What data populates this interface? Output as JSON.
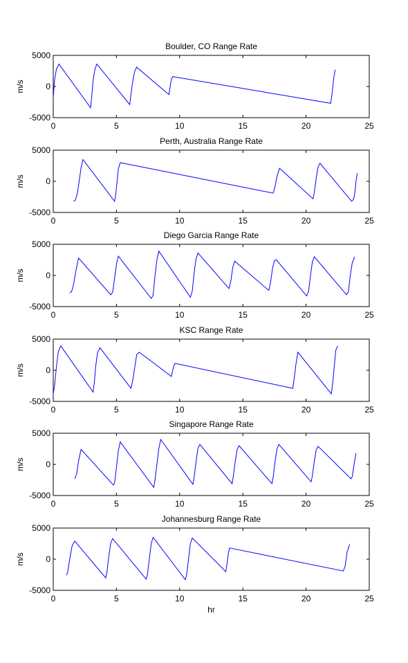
{
  "chart_data": [
    {
      "type": "line",
      "title": "Boulder, CO Range Rate",
      "ylabel": "m/s",
      "xlabel": "",
      "xlim": [
        0,
        25
      ],
      "ylim": [
        -5000,
        5000
      ],
      "xticks": [
        "0",
        "5",
        "10",
        "15",
        "20",
        "25"
      ],
      "yticks": [
        "-5000",
        "0",
        "5000"
      ],
      "grid": false,
      "series": [
        {
          "color": "#0000ff",
          "x": [
            0.0,
            0.1,
            0.25,
            0.45,
            2.95,
            3.05,
            3.15,
            3.3,
            3.45,
            6.05,
            6.15,
            6.3,
            6.45,
            6.6,
            9.15,
            9.25,
            9.35,
            9.45,
            21.95,
            22.05,
            22.2,
            22.3
          ],
          "y": [
            -1800,
            1000,
            2800,
            3600,
            -3400,
            -1500,
            900,
            2800,
            3600,
            -2900,
            -1200,
            1000,
            2500,
            3100,
            -1300,
            0,
            1200,
            1600,
            -2700,
            -1200,
            1500,
            2700
          ]
        }
      ]
    },
    {
      "type": "line",
      "title": "Perth, Australia Range Rate",
      "ylabel": "m/s",
      "xlabel": "",
      "xlim": [
        0,
        25
      ],
      "ylim": [
        -5000,
        5000
      ],
      "xticks": [
        "0",
        "5",
        "10",
        "15",
        "20",
        "25"
      ],
      "yticks": [
        "-5000",
        "0",
        "5000"
      ],
      "grid": false,
      "series": [
        {
          "color": "#0000ff",
          "x": [
            1.6,
            1.75,
            1.9,
            2.05,
            2.2,
            2.35,
            4.85,
            4.95,
            5.05,
            5.15,
            5.3,
            17.4,
            17.55,
            17.7,
            17.9,
            20.55,
            20.65,
            20.8,
            20.95,
            21.1,
            23.6,
            23.75,
            23.85,
            23.95,
            24.05
          ],
          "y": [
            -3200,
            -3000,
            -2000,
            0,
            2200,
            3500,
            -3200,
            -2000,
            0,
            2000,
            3000,
            -1900,
            -800,
            800,
            2100,
            -2800,
            -1800,
            500,
            2300,
            2900,
            -3200,
            -2900,
            -2000,
            0,
            1300
          ]
        }
      ]
    },
    {
      "type": "line",
      "title": "Diego Garcia Range Rate",
      "ylabel": "m/s",
      "xlabel": "",
      "xlim": [
        0,
        25
      ],
      "ylim": [
        -5000,
        5000
      ],
      "xticks": [
        "0",
        "5",
        "10",
        "15",
        "20",
        "25"
      ],
      "yticks": [
        "-5000",
        "0",
        "5000"
      ],
      "grid": false,
      "series": [
        {
          "color": "#0000ff",
          "x": [
            1.3,
            1.45,
            1.6,
            1.8,
            2.0,
            4.55,
            4.7,
            4.85,
            5.0,
            5.15,
            7.75,
            7.9,
            8.05,
            8.2,
            8.35,
            10.85,
            11.0,
            11.15,
            11.3,
            11.45,
            13.9,
            14.05,
            14.2,
            14.35,
            17.05,
            17.2,
            17.35,
            17.5,
            17.65,
            20.05,
            20.2,
            20.35,
            20.5,
            20.65,
            23.2,
            23.35,
            23.5,
            23.65,
            23.85
          ],
          "y": [
            -2800,
            -2600,
            -1500,
            800,
            2800,
            -3100,
            -2700,
            -500,
            1800,
            3100,
            -3700,
            -3200,
            0,
            2500,
            3900,
            -3500,
            -2500,
            500,
            2700,
            3600,
            -2100,
            -900,
            1300,
            2300,
            -2400,
            -1000,
            1200,
            2400,
            2500,
            -3300,
            -2500,
            0,
            2200,
            3000,
            -3100,
            -2600,
            0,
            2000,
            3000
          ]
        }
      ]
    },
    {
      "type": "line",
      "title": "KSC Range Rate",
      "ylabel": "m/s",
      "xlabel": "",
      "xlim": [
        0,
        25
      ],
      "ylim": [
        -5000,
        5000
      ],
      "xticks": [
        "0",
        "5",
        "10",
        "15",
        "20",
        "25"
      ],
      "yticks": [
        "-5000",
        "0",
        "5000"
      ],
      "grid": false,
      "series": [
        {
          "color": "#0000ff",
          "x": [
            0.0,
            0.1,
            0.25,
            0.4,
            0.6,
            3.15,
            3.25,
            3.35,
            3.5,
            3.7,
            6.15,
            6.3,
            6.45,
            6.6,
            6.8,
            9.35,
            9.45,
            9.55,
            9.65,
            18.95,
            19.05,
            19.2,
            19.35,
            22.0,
            22.1,
            22.25,
            22.35,
            22.5
          ],
          "y": [
            -3800,
            -2500,
            500,
            3000,
            3900,
            -3500,
            -2000,
            500,
            2800,
            3600,
            -2900,
            -1500,
            500,
            2500,
            2900,
            -1000,
            0,
            800,
            1100,
            -2900,
            -1500,
            1000,
            2900,
            -3800,
            -2200,
            1000,
            3200,
            3900
          ]
        }
      ]
    },
    {
      "type": "line",
      "title": "Singapore Range Rate",
      "ylabel": "m/s",
      "xlabel": "",
      "xlim": [
        0,
        25
      ],
      "ylim": [
        -5000,
        5000
      ],
      "xticks": [
        "0",
        "5",
        "10",
        "15",
        "20",
        "25"
      ],
      "yticks": [
        "-5000",
        "0",
        "5000"
      ],
      "grid": false,
      "series": [
        {
          "color": "#0000ff",
          "x": [
            1.7,
            1.85,
            2.0,
            2.2,
            4.75,
            4.85,
            5.0,
            5.15,
            5.3,
            7.95,
            8.05,
            8.2,
            8.35,
            8.5,
            11.05,
            11.15,
            11.3,
            11.45,
            11.6,
            14.15,
            14.25,
            14.4,
            14.55,
            14.7,
            17.3,
            17.4,
            17.55,
            17.7,
            17.85,
            20.4,
            20.5,
            20.65,
            20.8,
            20.95,
            23.55,
            23.65,
            23.8,
            23.95
          ],
          "y": [
            -2300,
            -1500,
            500,
            2400,
            -3300,
            -3000,
            -500,
            2200,
            3600,
            -3700,
            -2500,
            0,
            2500,
            4000,
            -3200,
            -2000,
            500,
            2600,
            3200,
            -3100,
            -1800,
            500,
            2400,
            3000,
            -3100,
            -2000,
            500,
            2500,
            3200,
            -2800,
            -1800,
            500,
            2300,
            2900,
            -2300,
            -2000,
            0,
            1800
          ]
        }
      ]
    },
    {
      "type": "line",
      "title": "Johannesburg Range Rate",
      "ylabel": "m/s",
      "xlabel": "hr",
      "xlim": [
        0,
        25
      ],
      "ylim": [
        -5000,
        5000
      ],
      "xticks": [
        "0",
        "5",
        "10",
        "15",
        "20",
        "25"
      ],
      "yticks": [
        "-5000",
        "0",
        "5000"
      ],
      "grid": false,
      "series": [
        {
          "color": "#0000ff",
          "x": [
            1.05,
            1.15,
            1.3,
            1.5,
            1.7,
            4.15,
            4.25,
            4.4,
            4.55,
            4.7,
            7.35,
            7.45,
            7.6,
            7.75,
            7.9,
            10.45,
            10.55,
            10.7,
            10.85,
            11.0,
            13.65,
            13.75,
            13.85,
            13.95,
            22.95,
            23.1,
            23.25,
            23.45
          ],
          "y": [
            -2600,
            -2000,
            0,
            2200,
            2900,
            -3000,
            -2000,
            500,
            2600,
            3300,
            -3200,
            -2500,
            0,
            2500,
            3500,
            -3300,
            -2500,
            0,
            2500,
            3400,
            -2000,
            -700,
            900,
            1800,
            -1900,
            -1000,
            1200,
            2400
          ]
        }
      ]
    }
  ]
}
